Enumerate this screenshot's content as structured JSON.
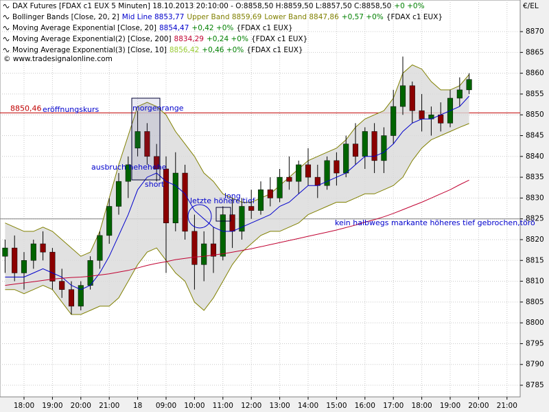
{
  "header": {
    "rows": [
      [
        {
          "text": "DAX Futures [FDAX c1 EUX  5 Minuten] 18.10.2013 20:10:00 - O:8858,50 H:8859,50 L:8857,50 C:8858,50",
          "color": "#000000"
        },
        {
          "text": "+0 +0%",
          "color": "#008000"
        }
      ],
      [
        {
          "text": "Bollinger Bands [Close, 20, 2]",
          "color": "#000000"
        },
        {
          "text": "Mid Line 8853,77",
          "color": "#0000cc"
        },
        {
          "text": "Upper Band 8859,69",
          "color": "#808000"
        },
        {
          "text": "Lower Band 8847,86",
          "color": "#808000"
        },
        {
          "text": "+0,57 +0%",
          "color": "#008000"
        },
        {
          "text": "{FDAX c1 EUX}",
          "color": "#000000"
        }
      ],
      [
        {
          "text": "Moving Average Exponential [Close, 20]",
          "color": "#000000"
        },
        {
          "text": "8854,47",
          "color": "#0000cc"
        },
        {
          "text": "+0,42 +0%",
          "color": "#008000"
        },
        {
          "text": "{FDAX c1 EUX}",
          "color": "#000000"
        }
      ],
      [
        {
          "text": "Moving Average Exponential(2) [Close, 200]",
          "color": "#000000"
        },
        {
          "text": "8834,29",
          "color": "#c00030"
        },
        {
          "text": "+0,24 +0%",
          "color": "#008000"
        },
        {
          "text": "{FDAX c1 EUX}",
          "color": "#000000"
        }
      ],
      [
        {
          "text": "Moving Average Exponential(3) [Close, 10]",
          "color": "#000000"
        },
        {
          "text": "8856,42",
          "color": "#99cc33"
        },
        {
          "text": "+0,46 +0%",
          "color": "#008000"
        },
        {
          "text": "{FDAX c1 EUX}",
          "color": "#000000"
        }
      ]
    ],
    "copyright": "© www.tradesignalonline.com",
    "currency": "€/EL"
  },
  "chart_data": {
    "type": "candlestick",
    "categories": [
      null,
      null,
      "18:00",
      null,
      null,
      "19:00",
      null,
      null,
      "20:00",
      null,
      null,
      "21:00",
      null,
      null,
      "18",
      null,
      null,
      "09:00",
      null,
      null,
      "10:00",
      null,
      null,
      "11:00",
      null,
      null,
      "12:00",
      null,
      null,
      "13:00",
      null,
      null,
      "14:00",
      null,
      null,
      "15:00",
      null,
      null,
      "16:00",
      null,
      null,
      "17:00",
      null,
      null,
      "18:00",
      null,
      null,
      "19:00",
      null,
      null,
      "20:00",
      null,
      null,
      "21:00"
    ],
    "open": [
      8816,
      8818,
      8812,
      8815,
      8819,
      8817,
      8810,
      8808,
      8804,
      8809,
      8815,
      8821,
      8828,
      8834,
      8842,
      8846,
      8840,
      8837,
      8824,
      8836,
      8822,
      8814,
      8819,
      8816,
      8826,
      8822,
      8828,
      8827,
      8832,
      8830,
      8835,
      8834,
      8838,
      8835,
      8833,
      8839,
      8836,
      8843,
      8840,
      8846,
      8839,
      8845,
      8852,
      8857,
      8851,
      8849,
      8850,
      8848,
      8854,
      8856,
      null,
      null,
      null,
      null
    ],
    "high": [
      8820,
      8821,
      8817,
      8820,
      8822,
      8818,
      8813,
      8810,
      8810,
      8816,
      8822,
      8830,
      8836,
      8840,
      8851,
      8848,
      8843,
      8840,
      8841,
      8838,
      8826,
      8822,
      8823,
      8828,
      8830,
      8830,
      8832,
      8834,
      8835,
      8837,
      8840,
      8839,
      8842,
      8838,
      8840,
      8841,
      8845,
      8848,
      8847,
      8848,
      8847,
      8856,
      8864,
      8858,
      8855,
      8852,
      8853,
      8856,
      8859,
      8860,
      null,
      null,
      null,
      null
    ],
    "low": [
      8812,
      8810,
      8808,
      8813,
      8815,
      8808,
      8806,
      8802,
      8803,
      8808,
      8813,
      8819,
      8826,
      8830,
      8840,
      8838,
      8834,
      8812,
      8822,
      8820,
      8808,
      8810,
      8812,
      8815,
      8818,
      8820,
      8825,
      8826,
      8828,
      8829,
      8832,
      8831,
      8833,
      8830,
      8832,
      8833,
      8835,
      8838,
      8837,
      8836,
      8836,
      8843,
      8850,
      8848,
      8846,
      8845,
      8846,
      8847,
      8852,
      8855,
      null,
      null,
      null,
      null
    ],
    "close": [
      8818,
      8812,
      8815,
      8819,
      8817,
      8810,
      8808,
      8804,
      8809,
      8815,
      8821,
      8828,
      8834,
      8838,
      8846,
      8840,
      8837,
      8824,
      8836,
      8822,
      8814,
      8819,
      8816,
      8826,
      8822,
      8828,
      8827,
      8832,
      8830,
      8835,
      8834,
      8838,
      8835,
      8833,
      8839,
      8836,
      8843,
      8840,
      8846,
      8839,
      8845,
      8852,
      8857,
      8851,
      8849,
      8850,
      8848,
      8854,
      8856,
      8858.5,
      null,
      null,
      null,
      null
    ],
    "up_color": "#006400",
    "down_color": "#8b0000",
    "band_fill": "#d9d9d9",
    "band": {
      "upper": {
        "color": "#808000",
        "values": [
          8824,
          8823,
          8822,
          8822,
          8823,
          8822,
          8820,
          8818,
          8816,
          8817,
          8822,
          8830,
          8838,
          8845,
          8852,
          8853,
          8852,
          8850,
          8846,
          8843,
          8840,
          8836,
          8834,
          8831,
          8830,
          8829,
          8829,
          8830,
          8831,
          8833,
          8835,
          8837,
          8839,
          8840,
          8841,
          8842,
          8844,
          8847,
          8849,
          8850,
          8851,
          8854,
          8860,
          8862,
          8861,
          8858,
          8856,
          8856,
          8857,
          8859.7,
          null,
          null,
          null,
          null
        ]
      },
      "lower": {
        "color": "#808000",
        "values": [
          8808,
          8808,
          8807,
          8808,
          8809,
          8808,
          8805,
          8802,
          8802,
          8803,
          8804,
          8804,
          8806,
          8810,
          8814,
          8817,
          8818,
          8815,
          8812,
          8810,
          8805,
          8803,
          8806,
          8810,
          8814,
          8817,
          8819,
          8821,
          8822,
          8822,
          8823,
          8824,
          8826,
          8827,
          8828,
          8829,
          8829,
          8830,
          8831,
          8831,
          8832,
          8833,
          8835,
          8839,
          8842,
          8844,
          8845,
          8846,
          8847,
          8847.9,
          null,
          null,
          null,
          null
        ]
      }
    },
    "series": [
      {
        "color": "#0000cc",
        "values": [
          8811,
          8811,
          8811,
          8812,
          8813,
          8812,
          8811,
          8809,
          8808,
          8809,
          8812,
          8816,
          8821,
          8826,
          8832,
          8835,
          8836,
          8834,
          8833,
          8831,
          8827,
          8825,
          8823,
          8822,
          8822,
          8823,
          8824,
          8825,
          8826,
          8828,
          8829,
          8831,
          8833,
          8833,
          8834,
          8835,
          8836,
          8838,
          8840,
          8840,
          8841,
          8843,
          8846,
          8848,
          8849,
          8849,
          8850,
          8851,
          8852,
          8854.5,
          null,
          null,
          null,
          null
        ]
      },
      {
        "color": "#c00030",
        "values": [
          8809,
          8809.3,
          8809.6,
          8809.9,
          8810.2,
          8810.5,
          8810.7,
          8810.9,
          8811,
          8811.2,
          8811.5,
          8811.8,
          8812.2,
          8812.6,
          8813.2,
          8813.8,
          8814.3,
          8814.7,
          8815.2,
          8815.5,
          8815.8,
          8816,
          8816.3,
          8816.6,
          8817,
          8817.4,
          8817.8,
          8818.3,
          8818.8,
          8819.3,
          8819.8,
          8820.3,
          8820.8,
          8821.3,
          8821.8,
          8822.3,
          8822.9,
          8823.5,
          8824.2,
          8824.8,
          8825.5,
          8826.3,
          8827.2,
          8828.1,
          8829,
          8830,
          8831,
          8832,
          8833.2,
          8834.3,
          null,
          null,
          null,
          null
        ]
      }
    ],
    "ylim": [
      8782.2,
      8877.6
    ],
    "yticks": [
      8785,
      8790,
      8795,
      8800,
      8805,
      8810,
      8815,
      8820,
      8825,
      8830,
      8835,
      8840,
      8845,
      8850,
      8855,
      8860,
      8865,
      8870
    ],
    "grid": true,
    "hlines": [
      {
        "value": 8850.46,
        "label": "8850,46",
        "color": "#c00000"
      },
      {
        "value": 8825,
        "color": "#808080"
      }
    ],
    "annotations": [
      "eröffnungskurs",
      "morgenrange",
      "ausbruch hehehehe",
      "short",
      "letzte höhere tief",
      "long",
      "kein halbwegs markante höheres tief gebrochen,törö"
    ],
    "annotation_color": "#0000cc"
  }
}
